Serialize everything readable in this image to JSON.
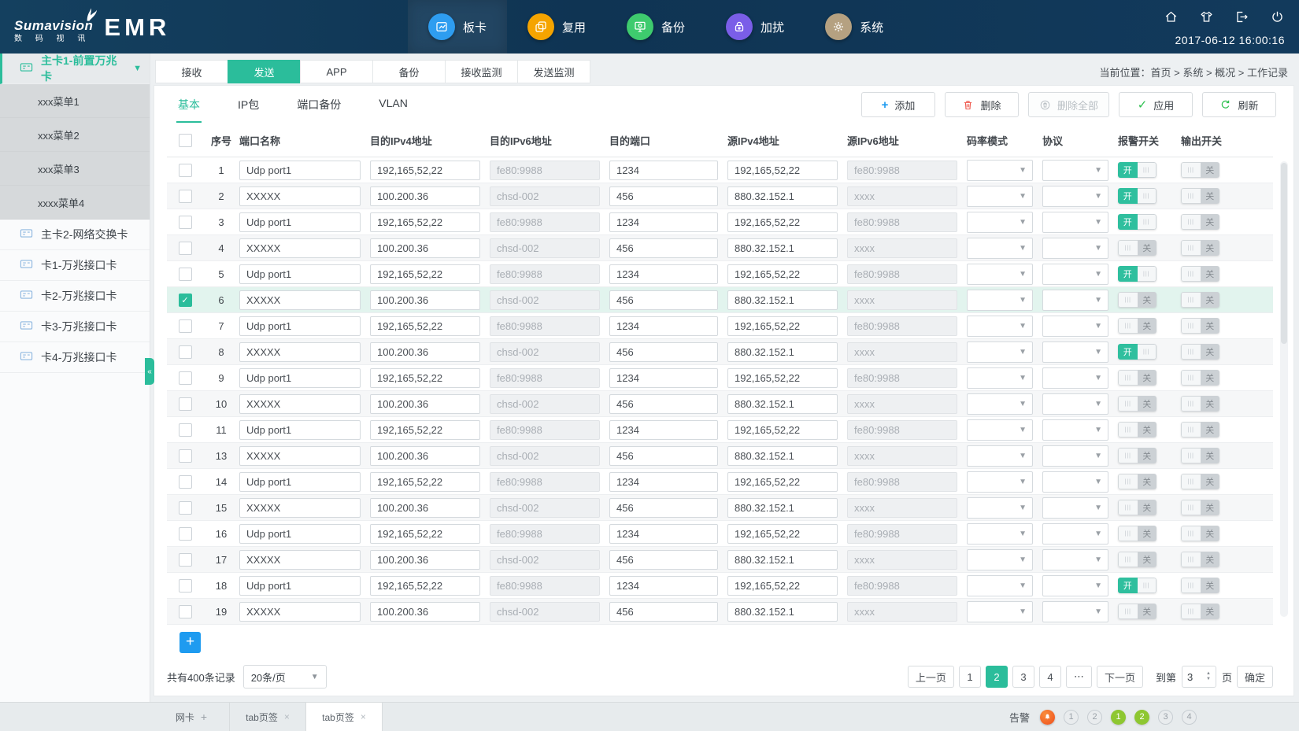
{
  "brand": {
    "logo_script": "Sumavision",
    "logo_cn": "数 码 视 讯",
    "product": "EMR"
  },
  "header": {
    "nav_items": [
      {
        "label": "板卡",
        "icon": "board-icon",
        "color": "#2e9df0",
        "active": true
      },
      {
        "label": "复用",
        "icon": "mux-icon",
        "color": "#f5a400",
        "active": false
      },
      {
        "label": "备份",
        "icon": "backup-icon",
        "color": "#3ecb6e",
        "active": false
      },
      {
        "label": "加扰",
        "icon": "lock-icon",
        "color": "#7a5ee8",
        "active": false
      },
      {
        "label": "系统",
        "icon": "system-icon",
        "color": "#b5a181",
        "active": false
      }
    ],
    "right_icons": [
      "home-icon",
      "theme-icon",
      "logout-icon",
      "power-icon"
    ],
    "datetime": "2017-06-12 16:00:16"
  },
  "sidebar": {
    "groups": [
      {
        "label": "主卡1-前置万兆卡",
        "active": true,
        "expanded": true,
        "children": [
          "xxx菜单1",
          "xxx菜单2",
          "xxx菜单3",
          "xxxx菜单4"
        ]
      },
      {
        "label": "主卡2-网络交换卡"
      },
      {
        "label": "卡1-万兆接口卡"
      },
      {
        "label": "卡2-万兆接口卡"
      },
      {
        "label": "卡3-万兆接口卡"
      },
      {
        "label": "卡4-万兆接口卡"
      }
    ],
    "collapse_glyph": "«"
  },
  "breadcrumb": "当前位置：首页 > 系统 > 概况 > 工作记录",
  "module_tabs": {
    "items": [
      "接收",
      "发送",
      "APP",
      "备份",
      "接收监测",
      "发送监测"
    ],
    "active_index": 1
  },
  "sub_tabs": {
    "items": [
      "基本",
      "IP包",
      "端口备份",
      "VLAN"
    ],
    "active_index": 0
  },
  "toolbar": [
    {
      "label": "添加",
      "icon": "plus-icon",
      "color": "#1e9bf0",
      "disabled": false
    },
    {
      "label": "删除",
      "icon": "trash-icon",
      "color": "#ef564a",
      "disabled": false
    },
    {
      "label": "删除全部",
      "icon": "trash-circle-icon",
      "color": "#b9bfc4",
      "disabled": true
    },
    {
      "label": "应用",
      "icon": "check-icon",
      "color": "#2cc04e",
      "disabled": false
    },
    {
      "label": "刷新",
      "icon": "refresh-icon",
      "color": "#2cc04e",
      "disabled": false
    }
  ],
  "table": {
    "headers": [
      "序号",
      "端口名称",
      "目的IPv4地址",
      "目的IPv6地址",
      "目的端口",
      "源IPv4地址",
      "源IPv6地址",
      "码率模式",
      "协议",
      "报警开关",
      "输出开关"
    ],
    "toggle_on": "开",
    "toggle_off": "关",
    "rows": [
      {
        "num": "1",
        "port": "Udp port1",
        "dst_ipv4": "192,165,52,22",
        "dst_ipv6": "fe80:9988",
        "dst_port": "1234",
        "src_ipv4": "192,165,52,22",
        "src_ipv6": "fe80:9988",
        "alarm": true,
        "output": false,
        "checked": false,
        "selected": false
      },
      {
        "num": "2",
        "port": "XXXXX",
        "dst_ipv4": "100.200.36",
        "dst_ipv6": "chsd-002",
        "dst_port": "456",
        "src_ipv4": "880.32.152.1",
        "src_ipv6": "xxxx",
        "alarm": true,
        "output": false,
        "checked": false,
        "selected": false
      },
      {
        "num": "3",
        "port": "Udp port1",
        "dst_ipv4": "192,165,52,22",
        "dst_ipv6": "fe80:9988",
        "dst_port": "1234",
        "src_ipv4": "192,165,52,22",
        "src_ipv6": "fe80:9988",
        "alarm": true,
        "output": false,
        "checked": false,
        "selected": false
      },
      {
        "num": "4",
        "port": "XXXXX",
        "dst_ipv4": "100.200.36",
        "dst_ipv6": "chsd-002",
        "dst_port": "456",
        "src_ipv4": "880.32.152.1",
        "src_ipv6": "xxxx",
        "alarm": false,
        "output": false,
        "checked": false,
        "selected": false
      },
      {
        "num": "5",
        "port": "Udp port1",
        "dst_ipv4": "192,165,52,22",
        "dst_ipv6": "fe80:9988",
        "dst_port": "1234",
        "src_ipv4": "192,165,52,22",
        "src_ipv6": "fe80:9988",
        "alarm": true,
        "output": false,
        "checked": false,
        "selected": false
      },
      {
        "num": "6",
        "port": "XXXXX",
        "dst_ipv4": "100.200.36",
        "dst_ipv6": "chsd-002",
        "dst_port": "456",
        "src_ipv4": "880.32.152.1",
        "src_ipv6": "xxxx",
        "alarm": false,
        "output": false,
        "checked": true,
        "selected": true
      },
      {
        "num": "7",
        "port": "Udp port1",
        "dst_ipv4": "192,165,52,22",
        "dst_ipv6": "fe80:9988",
        "dst_port": "1234",
        "src_ipv4": "192,165,52,22",
        "src_ipv6": "fe80:9988",
        "alarm": false,
        "output": false,
        "checked": false,
        "selected": false
      },
      {
        "num": "8",
        "port": "XXXXX",
        "dst_ipv4": "100.200.36",
        "dst_ipv6": "chsd-002",
        "dst_port": "456",
        "src_ipv4": "880.32.152.1",
        "src_ipv6": "xxxx",
        "alarm": true,
        "output": false,
        "checked": false,
        "selected": false
      },
      {
        "num": "9",
        "port": "Udp port1",
        "dst_ipv4": "192,165,52,22",
        "dst_ipv6": "fe80:9988",
        "dst_port": "1234",
        "src_ipv4": "192,165,52,22",
        "src_ipv6": "fe80:9988",
        "alarm": false,
        "output": false,
        "checked": false,
        "selected": false
      },
      {
        "num": "10",
        "port": "XXXXX",
        "dst_ipv4": "100.200.36",
        "dst_ipv6": "chsd-002",
        "dst_port": "456",
        "src_ipv4": "880.32.152.1",
        "src_ipv6": "xxxx",
        "alarm": false,
        "output": false,
        "checked": false,
        "selected": false
      },
      {
        "num": "11",
        "port": "Udp port1",
        "dst_ipv4": "192,165,52,22",
        "dst_ipv6": "fe80:9988",
        "dst_port": "1234",
        "src_ipv4": "192,165,52,22",
        "src_ipv6": "fe80:9988",
        "alarm": false,
        "output": false,
        "checked": false,
        "selected": false
      },
      {
        "num": "13",
        "port": "XXXXX",
        "dst_ipv4": "100.200.36",
        "dst_ipv6": "chsd-002",
        "dst_port": "456",
        "src_ipv4": "880.32.152.1",
        "src_ipv6": "xxxx",
        "alarm": false,
        "output": false,
        "checked": false,
        "selected": false
      },
      {
        "num": "14",
        "port": "Udp port1",
        "dst_ipv4": "192,165,52,22",
        "dst_ipv6": "fe80:9988",
        "dst_port": "1234",
        "src_ipv4": "192,165,52,22",
        "src_ipv6": "fe80:9988",
        "alarm": false,
        "output": false,
        "checked": false,
        "selected": false
      },
      {
        "num": "15",
        "port": "XXXXX",
        "dst_ipv4": "100.200.36",
        "dst_ipv6": "chsd-002",
        "dst_port": "456",
        "src_ipv4": "880.32.152.1",
        "src_ipv6": "xxxx",
        "alarm": false,
        "output": false,
        "checked": false,
        "selected": false
      },
      {
        "num": "16",
        "port": "Udp port1",
        "dst_ipv4": "192,165,52,22",
        "dst_ipv6": "fe80:9988",
        "dst_port": "1234",
        "src_ipv4": "192,165,52,22",
        "src_ipv6": "fe80:9988",
        "alarm": false,
        "output": false,
        "checked": false,
        "selected": false
      },
      {
        "num": "17",
        "port": "XXXXX",
        "dst_ipv4": "100.200.36",
        "dst_ipv6": "chsd-002",
        "dst_port": "456",
        "src_ipv4": "880.32.152.1",
        "src_ipv6": "xxxx",
        "alarm": false,
        "output": false,
        "checked": false,
        "selected": false
      },
      {
        "num": "18",
        "port": "Udp port1",
        "dst_ipv4": "192,165,52,22",
        "dst_ipv6": "fe80:9988",
        "dst_port": "1234",
        "src_ipv4": "192,165,52,22",
        "src_ipv6": "fe80:9988",
        "alarm": true,
        "output": false,
        "checked": false,
        "selected": false
      },
      {
        "num": "19",
        "port": "XXXXX",
        "dst_ipv4": "100.200.36",
        "dst_ipv6": "chsd-002",
        "dst_port": "456",
        "src_ipv4": "880.32.152.1",
        "src_ipv6": "xxxx",
        "alarm": false,
        "output": false,
        "checked": false,
        "selected": false
      }
    ]
  },
  "pagination": {
    "total": "共有400条记录",
    "page_size": "20条/页",
    "prev": "上一页",
    "pages": [
      "1",
      "2",
      "3",
      "4"
    ],
    "active_page": "2",
    "ellipsis": "⋯",
    "next": "下一页",
    "goto_label": "到第",
    "goto_value": "3",
    "goto_unit": "页",
    "confirm": "确定"
  },
  "bottom_bar": {
    "tabs": [
      {
        "label": "网卡",
        "add": true,
        "active": false
      },
      {
        "label": "tab页签",
        "closable": true,
        "active": false
      },
      {
        "label": "tab页签",
        "closable": true,
        "active": true
      }
    ],
    "alarm_label": "告警",
    "badges": [
      {
        "value": "",
        "type": "alarm",
        "icon": "bell-icon"
      },
      {
        "value": "1",
        "type": "gray"
      },
      {
        "value": "2",
        "type": "gray"
      },
      {
        "value": "1",
        "type": "green"
      },
      {
        "value": "2",
        "type": "green"
      },
      {
        "value": "3",
        "type": "gray"
      },
      {
        "value": "4",
        "type": "gray"
      }
    ],
    "accent": "#2bbd9b"
  }
}
